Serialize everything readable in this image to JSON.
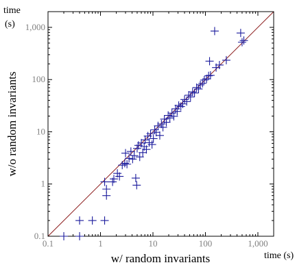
{
  "chart_data": {
    "type": "scatter",
    "title": "",
    "xlabel": "w/ random invariants",
    "ylabel": "w/o random invariants",
    "x_unit_label": "time (s)",
    "y_unit_label": [
      "time",
      "(s)"
    ],
    "scale": "log",
    "xlim": [
      0.1,
      2000
    ],
    "ylim": [
      0.1,
      2000
    ],
    "x_ticks": [
      {
        "value": 0.1,
        "label": "0.1"
      },
      {
        "value": 1,
        "label": "1"
      },
      {
        "value": 10,
        "label": "10"
      },
      {
        "value": 100,
        "label": "100"
      },
      {
        "value": 1000,
        "label": "1,000"
      }
    ],
    "y_ticks": [
      {
        "value": 0.1,
        "label": "0.1"
      },
      {
        "value": 1,
        "label": "1"
      },
      {
        "value": 10,
        "label": "10"
      },
      {
        "value": 100,
        "label": "100"
      },
      {
        "value": 1000,
        "label": "1,000"
      }
    ],
    "reference_line": "y = x",
    "grid": false,
    "colors": {
      "marker": "#1a1a9c",
      "diagonal": "#8b1a1a",
      "tick_label": "#808080",
      "frame": "#000000"
    },
    "points": [
      {
        "x": 0.2,
        "y": 0.1
      },
      {
        "x": 0.4,
        "y": 0.1
      },
      {
        "x": 0.4,
        "y": 0.2
      },
      {
        "x": 0.7,
        "y": 0.2
      },
      {
        "x": 1.2,
        "y": 0.2
      },
      {
        "x": 1.2,
        "y": 1.1
      },
      {
        "x": 1.3,
        "y": 0.8
      },
      {
        "x": 1.3,
        "y": 0.6
      },
      {
        "x": 1.7,
        "y": 1.1
      },
      {
        "x": 1.8,
        "y": 1.25
      },
      {
        "x": 2.1,
        "y": 1.6
      },
      {
        "x": 2.3,
        "y": 1.4
      },
      {
        "x": 2.6,
        "y": 2.3
      },
      {
        "x": 2.9,
        "y": 2.5
      },
      {
        "x": 3.2,
        "y": 2.4
      },
      {
        "x": 3.5,
        "y": 3.1
      },
      {
        "x": 3.0,
        "y": 3.9
      },
      {
        "x": 3.8,
        "y": 4.2
      },
      {
        "x": 4.1,
        "y": 3.0
      },
      {
        "x": 4.4,
        "y": 3.5
      },
      {
        "x": 4.7,
        "y": 1.3
      },
      {
        "x": 4.9,
        "y": 0.95
      },
      {
        "x": 5.0,
        "y": 4.8
      },
      {
        "x": 5.3,
        "y": 5.5
      },
      {
        "x": 5.6,
        "y": 3.3
      },
      {
        "x": 6.0,
        "y": 6.1
      },
      {
        "x": 6.4,
        "y": 4.0
      },
      {
        "x": 6.8,
        "y": 5.2
      },
      {
        "x": 7.1,
        "y": 7.0
      },
      {
        "x": 7.5,
        "y": 4.6
      },
      {
        "x": 8.0,
        "y": 8.3
      },
      {
        "x": 8.5,
        "y": 6.2
      },
      {
        "x": 9.0,
        "y": 9.2
      },
      {
        "x": 9.6,
        "y": 5.7
      },
      {
        "x": 10.2,
        "y": 7.4
      },
      {
        "x": 10.8,
        "y": 10.9
      },
      {
        "x": 11.5,
        "y": 9.8
      },
      {
        "x": 12.5,
        "y": 13.0
      },
      {
        "x": 13.5,
        "y": 8.5
      },
      {
        "x": 14.5,
        "y": 14.1
      },
      {
        "x": 15.5,
        "y": 12.2
      },
      {
        "x": 16.5,
        "y": 17.5
      },
      {
        "x": 18.0,
        "y": 15.2
      },
      {
        "x": 19.5,
        "y": 20.6
      },
      {
        "x": 21.0,
        "y": 18.4
      },
      {
        "x": 23.0,
        "y": 22.8
      },
      {
        "x": 25.0,
        "y": 19.8
      },
      {
        "x": 27.0,
        "y": 27.5
      },
      {
        "x": 29.0,
        "y": 24.6
      },
      {
        "x": 31.0,
        "y": 32.0
      },
      {
        "x": 34.0,
        "y": 30.5
      },
      {
        "x": 37.0,
        "y": 34.2
      },
      {
        "x": 40.0,
        "y": 41.5
      },
      {
        "x": 44.0,
        "y": 38.0
      },
      {
        "x": 48.0,
        "y": 50.2
      },
      {
        "x": 52.0,
        "y": 46.5
      },
      {
        "x": 57.0,
        "y": 58.1
      },
      {
        "x": 62.0,
        "y": 55.3
      },
      {
        "x": 68.0,
        "y": 70.4
      },
      {
        "x": 74.0,
        "y": 66.0
      },
      {
        "x": 80.0,
        "y": 79.2
      },
      {
        "x": 88.0,
        "y": 84.6
      },
      {
        "x": 95.0,
        "y": 98.0
      },
      {
        "x": 105.0,
        "y": 103.5
      },
      {
        "x": 115.0,
        "y": 118.0
      },
      {
        "x": 125.0,
        "y": 120.5
      },
      {
        "x": 120.0,
        "y": 225.0
      },
      {
        "x": 150.0,
        "y": 850.0
      },
      {
        "x": 160.0,
        "y": 170.0
      },
      {
        "x": 185.0,
        "y": 190.0
      },
      {
        "x": 250.0,
        "y": 235.0
      },
      {
        "x": 470.0,
        "y": 780.0
      },
      {
        "x": 500.0,
        "y": 520.0
      },
      {
        "x": 540.0,
        "y": 560.0
      }
    ]
  }
}
